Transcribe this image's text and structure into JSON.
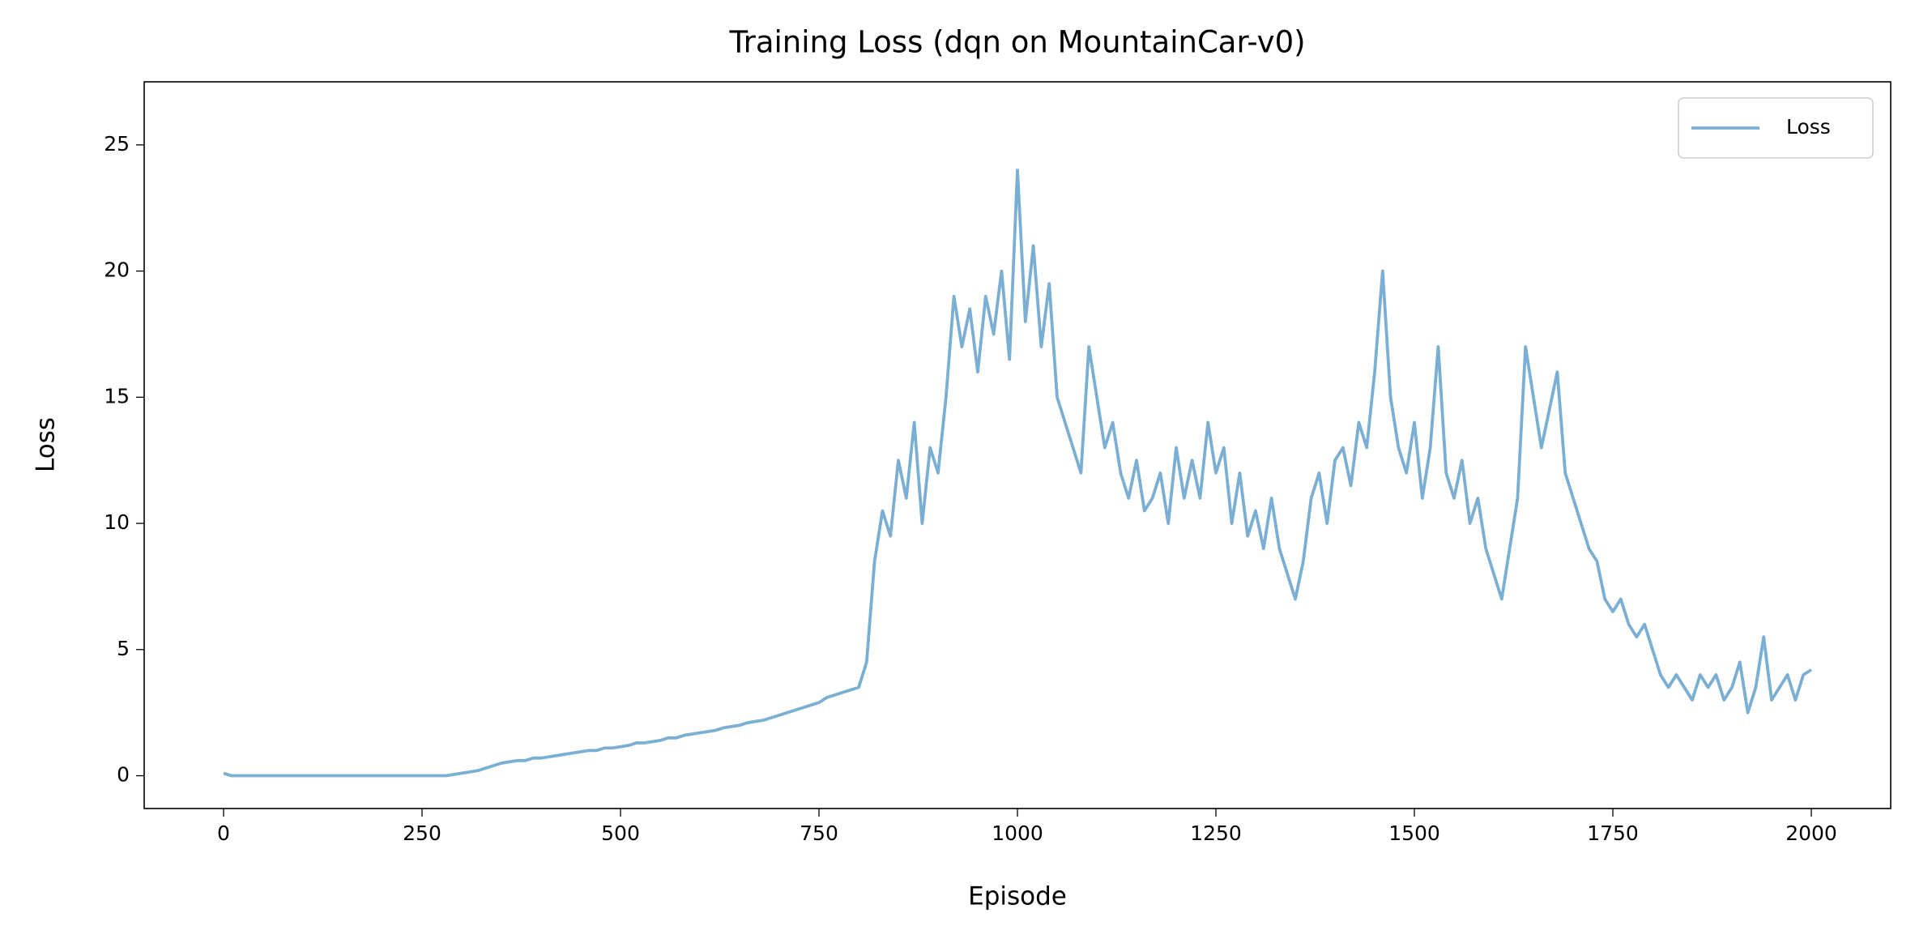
{
  "chart_data": {
    "type": "line",
    "title": "Training Loss (dqn on MountainCar-v0)",
    "x_label": "Episode",
    "y_label": "Loss",
    "x": [
      0,
      10,
      20,
      30,
      40,
      50,
      60,
      70,
      80,
      90,
      100,
      110,
      120,
      130,
      140,
      150,
      160,
      170,
      180,
      190,
      200,
      210,
      220,
      230,
      240,
      250,
      260,
      270,
      280,
      290,
      300,
      310,
      320,
      330,
      340,
      350,
      360,
      370,
      380,
      390,
      400,
      410,
      420,
      430,
      440,
      450,
      460,
      470,
      480,
      490,
      500,
      510,
      520,
      530,
      540,
      550,
      560,
      570,
      580,
      590,
      600,
      610,
      620,
      630,
      640,
      650,
      660,
      670,
      680,
      690,
      700,
      710,
      720,
      730,
      740,
      750,
      760,
      770,
      780,
      790,
      800,
      810,
      820,
      830,
      840,
      850,
      860,
      870,
      880,
      890,
      900,
      910,
      920,
      930,
      940,
      950,
      960,
      970,
      980,
      990,
      1000,
      1010,
      1020,
      1030,
      1040,
      1050,
      1060,
      1070,
      1080,
      1090,
      1100,
      1110,
      1120,
      1130,
      1140,
      1150,
      1160,
      1170,
      1180,
      1190,
      1200,
      1210,
      1220,
      1230,
      1240,
      1250,
      1260,
      1270,
      1280,
      1290,
      1300,
      1310,
      1320,
      1330,
      1340,
      1350,
      1360,
      1370,
      1380,
      1390,
      1400,
      1410,
      1420,
      1430,
      1440,
      1450,
      1460,
      1470,
      1480,
      1490,
      1500,
      1510,
      1520,
      1530,
      1540,
      1550,
      1560,
      1570,
      1580,
      1590,
      1600,
      1610,
      1620,
      1630,
      1640,
      1650,
      1660,
      1670,
      1680,
      1690,
      1700,
      1710,
      1720,
      1730,
      1740,
      1750,
      1760,
      1770,
      1780,
      1790,
      1800,
      1810,
      1820,
      1830,
      1840,
      1850,
      1860,
      1870,
      1880,
      1890,
      1900,
      1910,
      1920,
      1930,
      1940,
      1950,
      1960,
      1970,
      1980,
      1990,
      2000
    ],
    "series": [
      {
        "name": "Loss",
        "color": "#7aaed3",
        "values": [
          0.1,
          0.0,
          0.0,
          0.0,
          0.0,
          0.0,
          0.0,
          0.0,
          0.0,
          0.0,
          0.0,
          0.0,
          0.0,
          0.0,
          0.0,
          0.0,
          0.0,
          0.0,
          0.0,
          0.0,
          0.0,
          0.0,
          0.0,
          0.0,
          0.0,
          0.0,
          0.0,
          0.0,
          0.0,
          0.05,
          0.1,
          0.15,
          0.2,
          0.3,
          0.4,
          0.5,
          0.55,
          0.6,
          0.6,
          0.7,
          0.7,
          0.75,
          0.8,
          0.85,
          0.9,
          0.95,
          1.0,
          1.0,
          1.1,
          1.1,
          1.15,
          1.2,
          1.3,
          1.3,
          1.35,
          1.4,
          1.5,
          1.5,
          1.6,
          1.65,
          1.7,
          1.75,
          1.8,
          1.9,
          1.95,
          2.0,
          2.1,
          2.15,
          2.2,
          2.3,
          2.4,
          2.5,
          2.6,
          2.7,
          2.8,
          2.9,
          3.1,
          3.2,
          3.3,
          3.4,
          3.5,
          4.5,
          8.5,
          10.5,
          9.5,
          12.5,
          11,
          14,
          10,
          13,
          12,
          15,
          19,
          17,
          18.5,
          16,
          19,
          17.5,
          20,
          16.5,
          24,
          18,
          21,
          17,
          19.5,
          15,
          14,
          13,
          12,
          17,
          15,
          13,
          14,
          12,
          11,
          12.5,
          10.5,
          11,
          12,
          10,
          13,
          11,
          12.5,
          11,
          14,
          12,
          13,
          10,
          12,
          9.5,
          10.5,
          9,
          11,
          9,
          8,
          7,
          8.5,
          11,
          12,
          10,
          12.5,
          13,
          11.5,
          14,
          13,
          16,
          20,
          15,
          13,
          12,
          14,
          11,
          13,
          17,
          12,
          11,
          12.5,
          10,
          11,
          9,
          8,
          7,
          9,
          11,
          17,
          15,
          13,
          14.5,
          16,
          12,
          11,
          10,
          9,
          8.5,
          7,
          6.5,
          7,
          6,
          5.5,
          6,
          5,
          4,
          3.5,
          4,
          3.5,
          3,
          4,
          3.5,
          4,
          3,
          3.5,
          4.5,
          2.5,
          3.5,
          5.5,
          3,
          3.5,
          4,
          3,
          4,
          4.2
        ]
      }
    ],
    "xlim": [
      -100,
      2100
    ],
    "ylim": [
      -1.3,
      27.5
    ],
    "xticks": [
      0,
      250,
      500,
      750,
      1000,
      1250,
      1500,
      1750,
      2000
    ],
    "yticks": [
      0,
      5,
      10,
      15,
      20,
      25
    ],
    "legend": "upper right"
  }
}
